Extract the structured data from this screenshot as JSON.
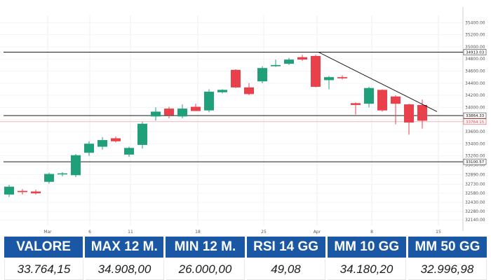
{
  "chart_data": {
    "type": "candlestick",
    "title": "",
    "xlabel": "",
    "ylabel": "",
    "ylim": [
      32050,
      35520
    ],
    "x_ticks": [
      "Mar",
      "6",
      "11",
      "18",
      "25",
      "Apr",
      "8",
      "15"
    ],
    "y_ticks": [
      32140,
      32280,
      32430,
      32580,
      32730,
      32890,
      33050,
      33200,
      33400,
      33600,
      33800,
      34000,
      34200,
      34400,
      34600,
      34800,
      35000,
      35200,
      35400
    ],
    "y_tick_labels": [
      "32140.00",
      "32280.00",
      "32430.00",
      "32580.00",
      "32730.00",
      "32890.00",
      "33050.00",
      "33200.00",
      "33400.00",
      "33600.00",
      "33800.00",
      "34000.00",
      "34200.00",
      "34400.00",
      "34600.00",
      "34800.00",
      "35000.00",
      "35200.00",
      "35400.00"
    ],
    "colors": {
      "up": "#1fa07a",
      "down": "#e8414b",
      "line": "#1a1a1a",
      "header": "#1a58a5"
    },
    "candles": [
      {
        "x": 0,
        "open": 32560,
        "high": 32720,
        "low": 32520,
        "close": 32690
      },
      {
        "x": 1,
        "open": 32620,
        "high": 32650,
        "low": 32560,
        "close": 32600
      },
      {
        "x": 2,
        "open": 32610,
        "high": 32640,
        "low": 32560,
        "close": 32580
      },
      {
        "x": 3,
        "open": 32770,
        "high": 32920,
        "low": 32740,
        "close": 32900
      },
      {
        "x": 4,
        "open": 32900,
        "high": 32930,
        "low": 32860,
        "close": 32910
      },
      {
        "x": 5,
        "open": 32880,
        "high": 33230,
        "low": 32850,
        "close": 33210
      },
      {
        "x": 6,
        "open": 33250,
        "high": 33440,
        "low": 33200,
        "close": 33400
      },
      {
        "x": 7,
        "open": 33350,
        "high": 33510,
        "low": 33300,
        "close": 33460
      },
      {
        "x": 8,
        "open": 33490,
        "high": 33520,
        "low": 33420,
        "close": 33440
      },
      {
        "x": 9,
        "open": 33220,
        "high": 33350,
        "low": 33180,
        "close": 33330
      },
      {
        "x": 10,
        "open": 33380,
        "high": 33760,
        "low": 33320,
        "close": 33730
      },
      {
        "x": 11,
        "open": 33850,
        "high": 34000,
        "low": 33780,
        "close": 33930
      },
      {
        "x": 12,
        "open": 33980,
        "high": 34010,
        "low": 33820,
        "close": 33870
      },
      {
        "x": 13,
        "open": 33850,
        "high": 34050,
        "low": 33820,
        "close": 33980
      },
      {
        "x": 14,
        "open": 34010,
        "high": 34060,
        "low": 33950,
        "close": 33940
      },
      {
        "x": 15,
        "open": 33950,
        "high": 34300,
        "low": 33920,
        "close": 34260
      },
      {
        "x": 16,
        "open": 34250,
        "high": 34300,
        "low": 34230,
        "close": 34290
      },
      {
        "x": 17,
        "open": 34620,
        "high": 34630,
        "low": 34320,
        "close": 34330
      },
      {
        "x": 18,
        "open": 34330,
        "high": 34400,
        "low": 34200,
        "close": 34220
      },
      {
        "x": 19,
        "open": 34430,
        "high": 34680,
        "low": 34400,
        "close": 34650
      },
      {
        "x": 20,
        "open": 34680,
        "high": 34790,
        "low": 34670,
        "close": 34700
      },
      {
        "x": 21,
        "open": 34720,
        "high": 34820,
        "low": 34700,
        "close": 34790
      },
      {
        "x": 22,
        "open": 34830,
        "high": 34870,
        "low": 34770,
        "close": 34790
      },
      {
        "x": 23,
        "open": 34850,
        "high": 34870,
        "low": 34330,
        "close": 34340
      },
      {
        "x": 24,
        "open": 34450,
        "high": 34520,
        "low": 34300,
        "close": 34500
      },
      {
        "x": 25,
        "open": 34500,
        "high": 34530,
        "low": 34460,
        "close": 34480
      },
      {
        "x": 26,
        "open": 34070,
        "high": 34080,
        "low": 33880,
        "close": 34040
      },
      {
        "x": 27,
        "open": 34060,
        "high": 34340,
        "low": 34000,
        "close": 34320
      },
      {
        "x": 28,
        "open": 34290,
        "high": 34300,
        "low": 33930,
        "close": 33950
      },
      {
        "x": 29,
        "open": 34180,
        "high": 34200,
        "low": 33720,
        "close": 34060
      },
      {
        "x": 30,
        "open": 34050,
        "high": 34060,
        "low": 33550,
        "close": 33750
      },
      {
        "x": 31,
        "open": 34040,
        "high": 34130,
        "low": 33650,
        "close": 33780
      }
    ],
    "horizontal_levels": [
      {
        "value": 34913.03,
        "label": "34913.03"
      },
      {
        "value": 33864.33,
        "label": "33864.33"
      },
      {
        "value": 33100.57,
        "label": "33100.57"
      }
    ],
    "last_price": {
      "value": 33764.15,
      "label": "33764.15"
    },
    "trendline": {
      "from": {
        "x": 23,
        "y": 34913
      },
      "to": {
        "x": 32,
        "y": 33930
      }
    }
  },
  "stats": {
    "headers": [
      "VALORE",
      "MAX 12 M.",
      "MIN 12 M.",
      "RSI 14 GG",
      "MM 10 GG",
      "MM 50 GG"
    ],
    "values": [
      "33.764,15",
      "34.908,00",
      "26.000,00",
      "49,08",
      "34.180,20",
      "32.996,98"
    ]
  }
}
